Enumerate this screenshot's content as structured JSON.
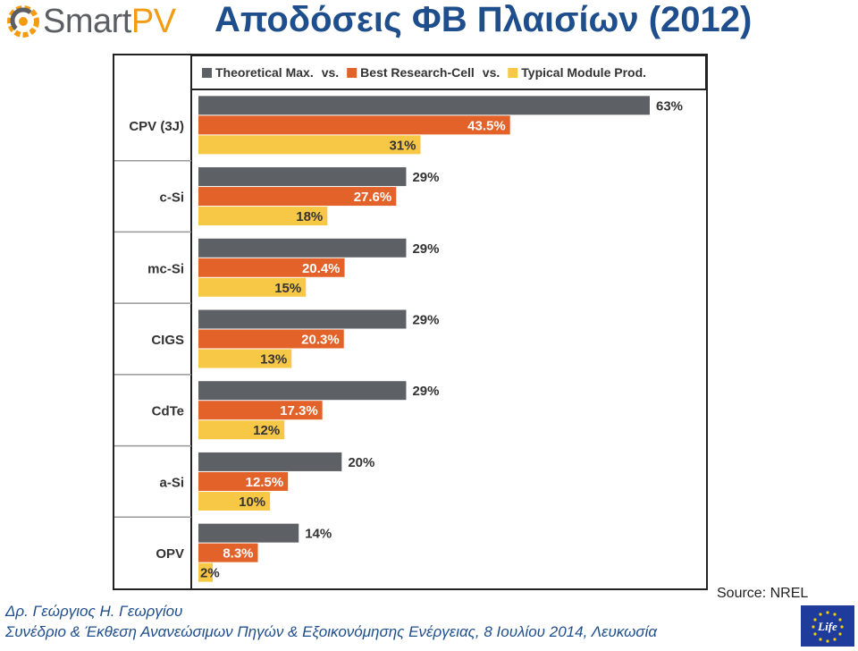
{
  "header": {
    "logo_part1": "Smart",
    "logo_part2": "PV",
    "title": "Αποδόσεις ΦΒ Πλαισίων (2012)"
  },
  "footer": {
    "source": "Source: NREL",
    "author": "Δρ. Γεώργιος Η. Γεωργίου",
    "event": "Συνέδριο & Έκθεση Ανανεώσιμων Πηγών & Εξοικονόμησης Ενέργειας, 8 Ιουλίου 2014, Λευκωσία",
    "eu_logo_text": "Life"
  },
  "colors": {
    "theoretical": "#5d6166",
    "research": "#e2622a",
    "module": "#f7c845"
  },
  "chart_data": {
    "type": "bar",
    "orientation": "horizontal",
    "legend": {
      "items": [
        "Theoretical Max.",
        "vs.",
        "Best Research-Cell",
        "vs.",
        "Typical Module Prod."
      ],
      "placement": "top"
    },
    "categories": [
      "CPV (3J)",
      "c-Si",
      "mc-Si",
      "CIGS",
      "CdTe",
      "a-Si",
      "OPV"
    ],
    "series": [
      {
        "name": "Theoretical Max.",
        "values": [
          63,
          29,
          29,
          29,
          29,
          20,
          14
        ],
        "labels": [
          "63%",
          "29%",
          "29%",
          "29%",
          "29%",
          "20%",
          "14%"
        ]
      },
      {
        "name": "Best Research-Cell",
        "values": [
          43.5,
          27.6,
          20.4,
          20.3,
          17.3,
          12.5,
          8.3
        ],
        "labels": [
          "43.5%",
          "27.6%",
          "20.4%",
          "20.3%",
          "17.3%",
          "12.5%",
          "8.3%"
        ]
      },
      {
        "name": "Typical Module Prod.",
        "values": [
          31,
          18,
          15,
          13,
          12,
          10,
          2
        ],
        "labels": [
          "31%",
          "18%",
          "15%",
          "13%",
          "12%",
          "10%",
          "2%"
        ]
      }
    ],
    "unit": "%",
    "xlim": [
      0,
      63
    ],
    "grid": false
  }
}
